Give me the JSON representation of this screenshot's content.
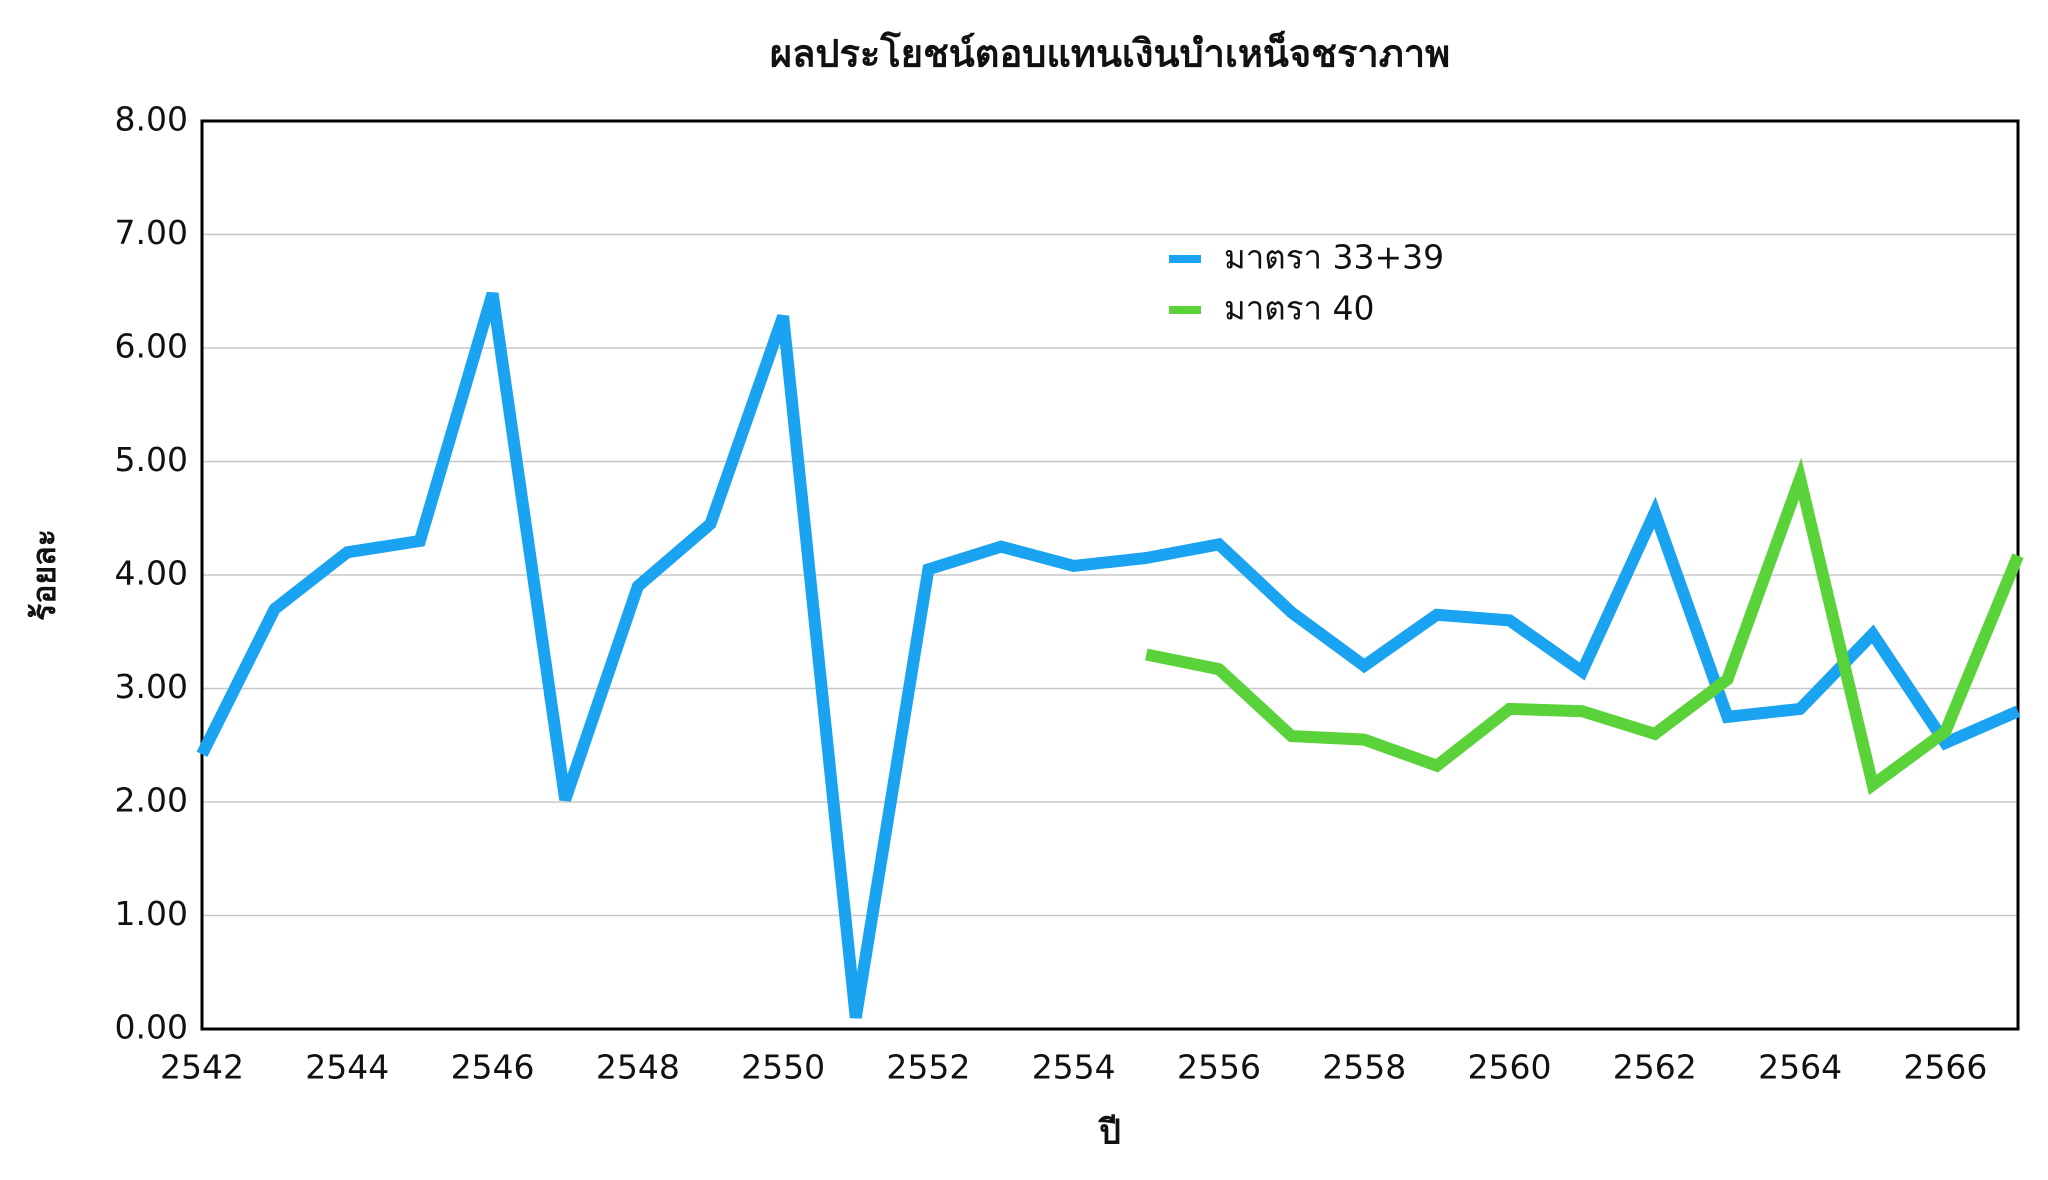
{
  "chart_data": {
    "type": "line",
    "title": "ผลประโยชน์ตอบแทนเงินบำเหน็จชราภาพ",
    "x_label": "ปี",
    "y_label": "ร้อยละ",
    "x": [
      2542,
      2543,
      2544,
      2545,
      2546,
      2547,
      2548,
      2549,
      2550,
      2551,
      2552,
      2553,
      2554,
      2555,
      2556,
      2557,
      2558,
      2559,
      2560,
      2561,
      2562,
      2563,
      2564,
      2565,
      2566,
      2567
    ],
    "series": [
      {
        "name": "มาตรา 33+39",
        "color": "#1aa3f0",
        "values": [
          2.42,
          3.7,
          4.2,
          4.3,
          6.48,
          2.02,
          3.9,
          4.45,
          6.28,
          0.1,
          4.05,
          4.25,
          4.08,
          4.15,
          4.27,
          3.67,
          3.2,
          3.65,
          3.6,
          3.15,
          4.55,
          2.75,
          2.82,
          3.48,
          2.52,
          2.8
        ]
      },
      {
        "name": "มาตรา 40",
        "color": "#5ad33a",
        "values": [
          null,
          null,
          null,
          null,
          null,
          null,
          null,
          null,
          null,
          null,
          null,
          null,
          null,
          3.3,
          3.17,
          2.58,
          2.55,
          2.32,
          2.82,
          2.8,
          2.6,
          3.08,
          4.85,
          2.15,
          2.62,
          4.17
        ]
      }
    ],
    "xlim": [
      2542,
      2567
    ],
    "xticks": [
      2542,
      2544,
      2546,
      2548,
      2550,
      2552,
      2554,
      2556,
      2558,
      2560,
      2562,
      2564,
      2566
    ],
    "ylim": [
      0,
      8
    ],
    "yticks": [
      {
        "value": 0,
        "label": "0.00"
      },
      {
        "value": 1,
        "label": "1.00"
      },
      {
        "value": 2,
        "label": "2.00"
      },
      {
        "value": 3,
        "label": "3.00"
      },
      {
        "value": 4,
        "label": "4.00"
      },
      {
        "value": 5,
        "label": "5.00"
      },
      {
        "value": 6,
        "label": "6.00"
      },
      {
        "value": 7,
        "label": "7.00"
      },
      {
        "value": 8,
        "label": "8.00"
      }
    ],
    "grid": true
  }
}
